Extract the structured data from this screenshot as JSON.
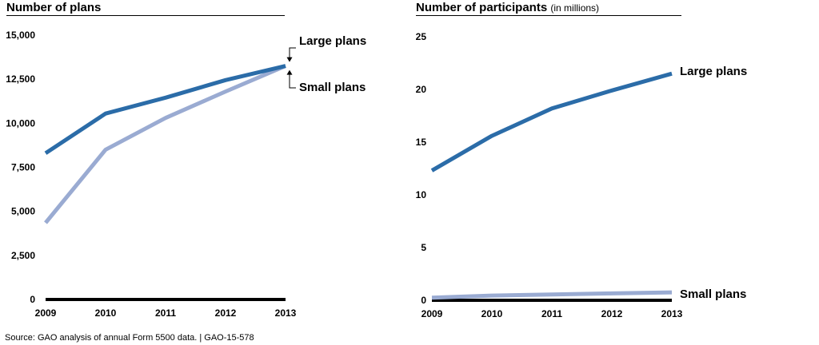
{
  "source": "Source: GAO analysis of annual Form 5500 data.  |  GAO-15-578",
  "colors": {
    "large": "#2b6ca8",
    "small": "#9aabd2",
    "axis": "#000000"
  },
  "chart_data": [
    {
      "type": "line",
      "title": "Number of plans",
      "title_unit": "",
      "x": [
        "2009",
        "2010",
        "2011",
        "2012",
        "2013"
      ],
      "ylim": [
        0,
        15000
      ],
      "yticks": [
        "0",
        "2,500",
        "5,000",
        "7,500",
        "10,000",
        "12,500",
        "15,000"
      ],
      "ytick_values": [
        0,
        2500,
        5000,
        7500,
        10000,
        12500,
        15000
      ],
      "grid": false,
      "series": [
        {
          "name": "Large plans",
          "values": [
            8300,
            10550,
            11450,
            12450,
            13250
          ]
        },
        {
          "name": "Small plans",
          "values": [
            4350,
            8500,
            10300,
            11800,
            13250
          ]
        }
      ]
    },
    {
      "type": "line",
      "title": "Number of participants",
      "title_unit": "(in millions)",
      "x": [
        "2009",
        "2010",
        "2011",
        "2012",
        "2013"
      ],
      "ylim": [
        0,
        25
      ],
      "yticks": [
        "0",
        "5",
        "10",
        "15",
        "20",
        "25"
      ],
      "ytick_values": [
        0,
        5,
        10,
        15,
        20,
        25
      ],
      "grid": false,
      "series": [
        {
          "name": "Large plans",
          "values": [
            12.3,
            15.6,
            18.2,
            19.9,
            21.5
          ]
        },
        {
          "name": "Small plans",
          "values": [
            0.25,
            0.45,
            0.55,
            0.65,
            0.75
          ]
        }
      ]
    }
  ]
}
